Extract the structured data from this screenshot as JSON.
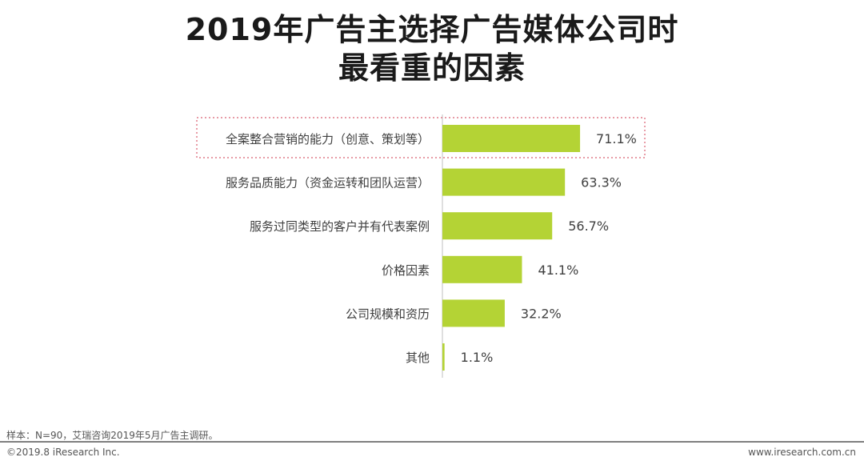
{
  "chart_data": {
    "type": "bar",
    "orientation": "horizontal",
    "title_line1": "2019年广告主选择广告媒体公司时",
    "title_line2": "最看重的因素",
    "categories": [
      "全案整合营销的能力（创意、策划等）",
      "服务品质能力（资金运转和团队运营）",
      "服务过同类型的客户并有代表案例",
      "价格因素",
      "公司规模和资历",
      "其他"
    ],
    "values": [
      71.1,
      63.3,
      56.7,
      41.1,
      32.2,
      1.1
    ],
    "value_labels": [
      "71.1%",
      "63.3%",
      "56.7%",
      "41.1%",
      "32.2%",
      "1.1%"
    ],
    "highlighted_index": 0,
    "bar_color": "#b4d335",
    "highlight_border_color": "#e07c8a",
    "xlim": [
      0,
      100
    ],
    "grid": false
  },
  "footer": {
    "note": "样本：N=90，艾瑞咨询2019年5月广告主调研。",
    "copyright": "©2019.8 iResearch Inc.",
    "url": "www.iresearch.com.cn"
  }
}
